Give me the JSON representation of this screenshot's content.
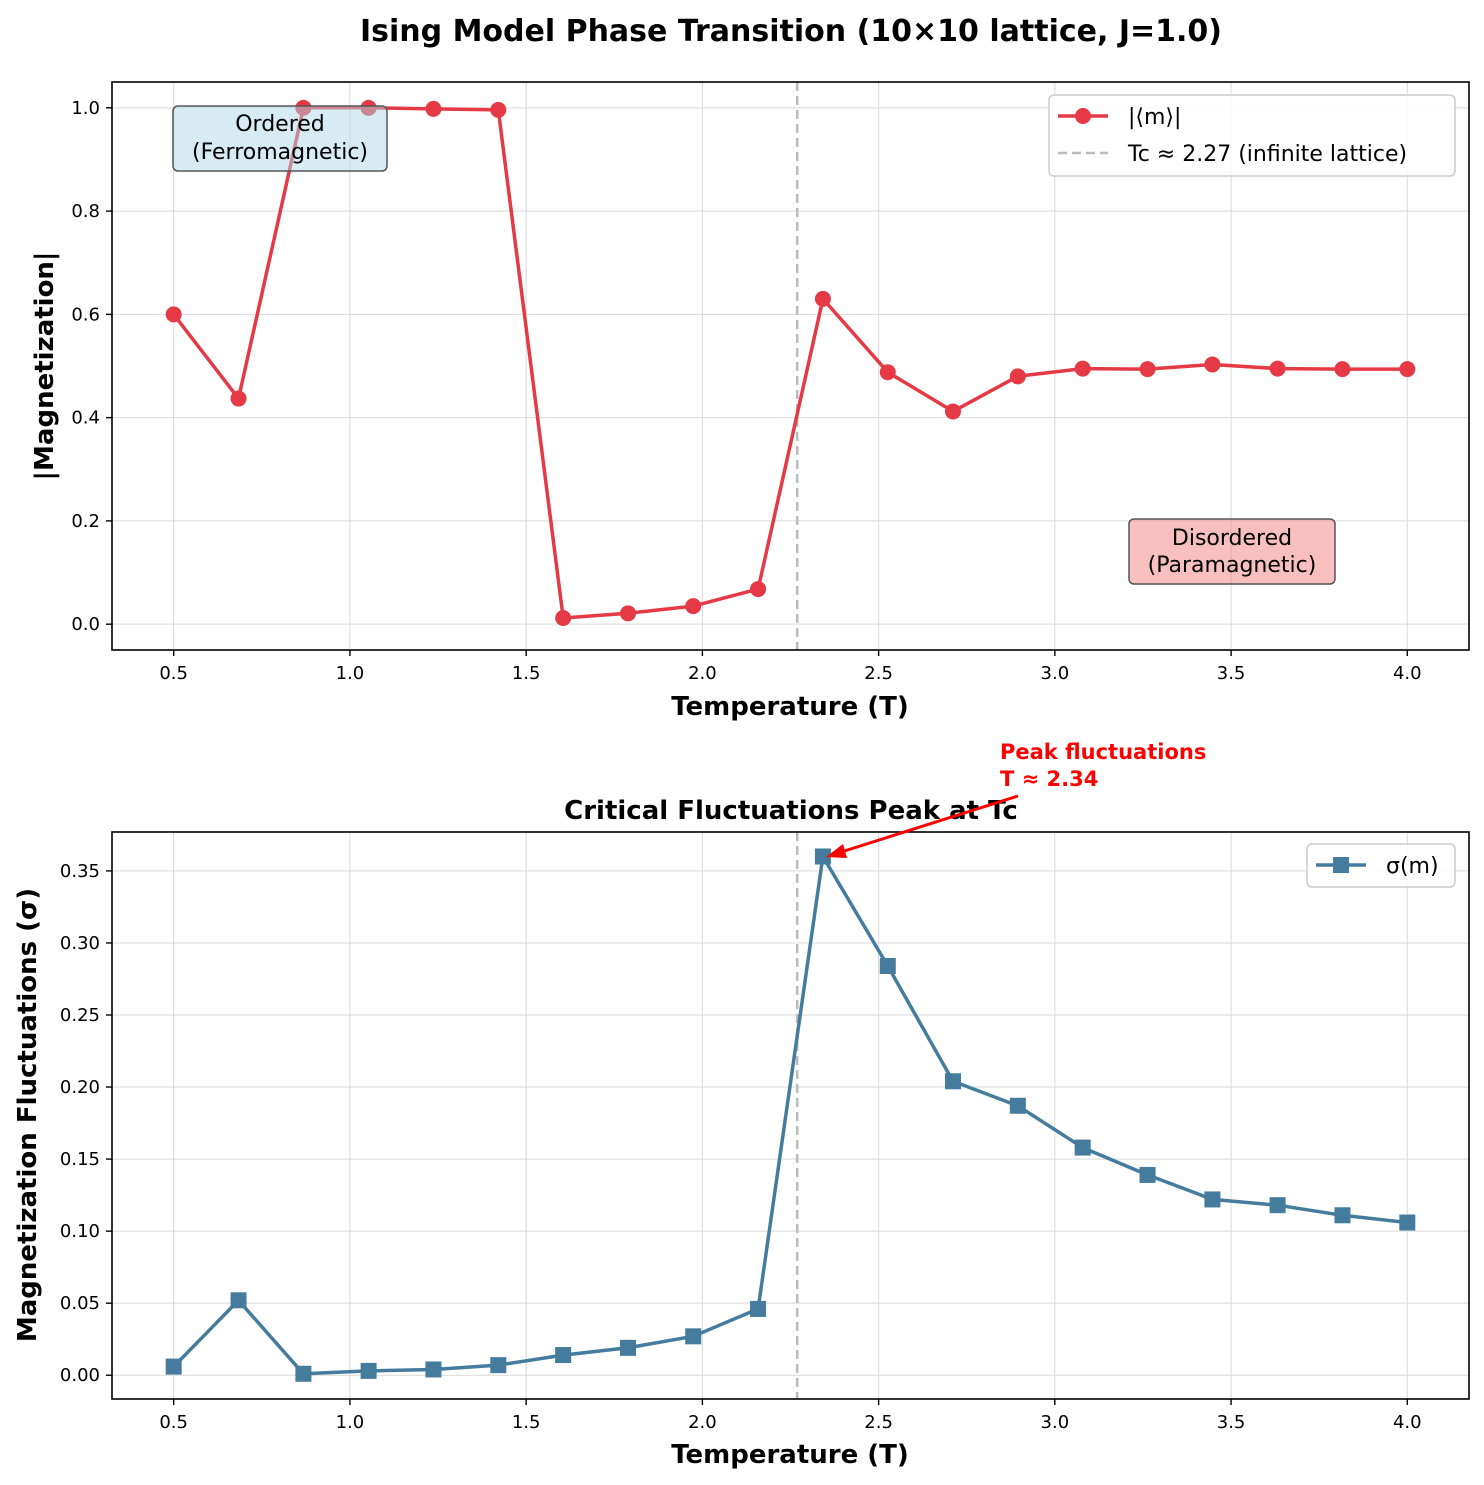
{
  "suptitle": "Ising Model Phase Transition (10×10 lattice, J=1.0)",
  "colors": {
    "magnetization": "#e63946",
    "fluctuations": "#457b9d",
    "tc_line": "#bbbbbb",
    "ordered_box": "#add8e6",
    "disordered_box": "#f08080",
    "annotation": "#ff0000"
  },
  "chart_data": [
    {
      "type": "line",
      "title": "",
      "xlabel": "Temperature (T)",
      "ylabel": "|Magnetization|",
      "xlim": [
        0.325,
        4.175
      ],
      "ylim": [
        -0.05,
        1.05
      ],
      "xticks": [
        "0.5",
        "1.0",
        "1.5",
        "2.0",
        "2.5",
        "3.0",
        "3.5",
        "4.0"
      ],
      "yticks": [
        "0.0",
        "0.2",
        "0.4",
        "0.6",
        "0.8",
        "1.0"
      ],
      "grid": true,
      "legend_position": "top-right",
      "x": [
        0.5,
        0.684,
        0.868,
        1.053,
        1.237,
        1.421,
        1.605,
        1.789,
        1.974,
        2.158,
        2.342,
        2.526,
        2.711,
        2.895,
        3.079,
        3.263,
        3.447,
        3.632,
        3.816,
        4.0
      ],
      "series": [
        {
          "name": "|⟨m⟩|",
          "marker": "circle",
          "values": [
            0.6,
            0.437,
            1.0,
            1.0,
            0.998,
            0.996,
            0.012,
            0.021,
            0.035,
            0.068,
            0.63,
            0.488,
            0.412,
            0.48,
            0.495,
            0.494,
            0.503,
            0.495,
            0.494,
            0.494
          ]
        }
      ],
      "reference_line": {
        "label": "Tc ≈ 2.27 (infinite lattice)",
        "x": 2.269,
        "style": "dashed"
      },
      "annotations": [
        {
          "text_lines": [
            "Ordered",
            "(Ferromagnetic)"
          ],
          "style": "ordered_box"
        },
        {
          "text_lines": [
            "Disordered",
            "(Paramagnetic)"
          ],
          "style": "disordered_box"
        }
      ]
    },
    {
      "type": "line",
      "title": "Critical Fluctuations Peak at Tc",
      "xlabel": "Temperature (T)",
      "ylabel": "Magnetization Fluctuations (σ)",
      "xlim": [
        0.325,
        4.175
      ],
      "ylim": [
        -0.0165,
        0.377
      ],
      "xticks": [
        "0.5",
        "1.0",
        "1.5",
        "2.0",
        "2.5",
        "3.0",
        "3.5",
        "4.0"
      ],
      "yticks": [
        "0.00",
        "0.05",
        "0.10",
        "0.15",
        "0.20",
        "0.25",
        "0.30",
        "0.35"
      ],
      "grid": true,
      "legend_position": "top-right",
      "x": [
        0.5,
        0.684,
        0.868,
        1.053,
        1.237,
        1.421,
        1.605,
        1.789,
        1.974,
        2.158,
        2.342,
        2.526,
        2.711,
        2.895,
        3.079,
        3.263,
        3.447,
        3.632,
        3.816,
        4.0
      ],
      "series": [
        {
          "name": "σ(m)",
          "marker": "square",
          "values": [
            0.006,
            0.052,
            0.001,
            0.003,
            0.004,
            0.007,
            0.014,
            0.019,
            0.027,
            0.046,
            0.36,
            0.284,
            0.204,
            0.187,
            0.158,
            0.139,
            0.122,
            0.118,
            0.111,
            0.106
          ]
        }
      ],
      "reference_line": {
        "x": 2.269,
        "style": "dashed"
      },
      "annotations": [
        {
          "text_lines": [
            "Peak fluctuations",
            "T ≈ 2.34"
          ],
          "arrow_to": {
            "x": 2.342,
            "y": 0.36
          }
        }
      ]
    }
  ]
}
